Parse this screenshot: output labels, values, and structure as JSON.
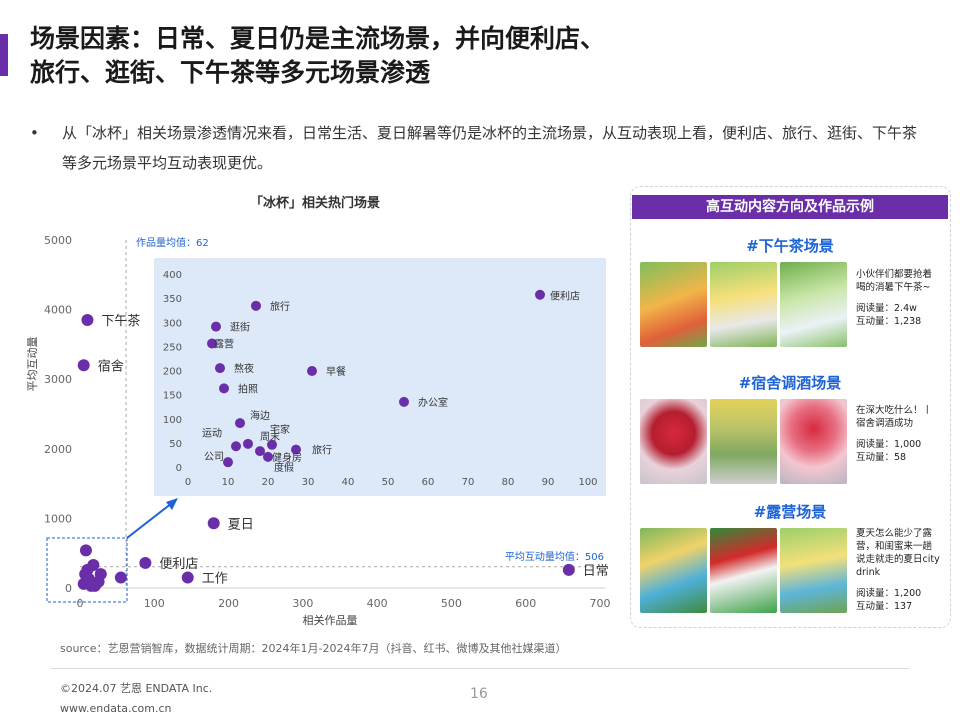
{
  "header": {
    "title_line1": "场景因素：日常、夏日仍是主流场景，并向便利店、",
    "title_line2": "旅行、逛街、下午茶等多元场景渗透",
    "bullet": "从「冰杯」相关场景渗透情况来看，日常生活、夏日解暑等仍是冰杯的主流场景，从互动表现上看，便利店、旅行、逛街、下午茶等多元场景平均互动表现更优。"
  },
  "colors": {
    "accent": "#6a2fa8",
    "point": "#6a2fa8",
    "link_blue": "#1e63d6",
    "inset_bg": "#dde9f9"
  },
  "chart_data": [
    {
      "type": "scatter",
      "title": "「冰杯」相关热门场景",
      "xlabel": "相关作品量",
      "ylabel": "平均互动量",
      "xlim": [
        0,
        700
      ],
      "ylim": [
        0,
        5000
      ],
      "xticks": [
        0,
        100,
        200,
        300,
        400,
        500,
        600,
        700
      ],
      "yticks": [
        0,
        1000,
        2000,
        3000,
        4000,
        5000
      ],
      "ref_lines": {
        "x_label": "作品量均值：62",
        "x_value": 62,
        "y_label": "平均互动量均值：506",
        "y_value": 506
      },
      "points": [
        {
          "label": "下午茶",
          "x": 10,
          "y": 3850
        },
        {
          "label": "宿舍",
          "x": 5,
          "y": 3200
        },
        {
          "label": "夏日",
          "x": 180,
          "y": 930
        },
        {
          "label": "便利店",
          "x": 88,
          "y": 360
        },
        {
          "label": "工作",
          "x": 145,
          "y": 150
        },
        {
          "label": "日常",
          "x": 658,
          "y": 260
        },
        {
          "label": "",
          "x": 55,
          "y": 150
        },
        {
          "label": "",
          "x": 8,
          "y": 540
        },
        {
          "label": "",
          "x": 18,
          "y": 330
        },
        {
          "label": "",
          "x": 28,
          "y": 200
        },
        {
          "label": "",
          "x": 10,
          "y": 260
        },
        {
          "label": "",
          "x": 20,
          "y": 30
        },
        {
          "label": "",
          "x": 5,
          "y": 60
        },
        {
          "label": "",
          "x": 12,
          "y": 130
        },
        {
          "label": "",
          "x": 25,
          "y": 90
        },
        {
          "label": "",
          "x": 7,
          "y": 200
        },
        {
          "label": "",
          "x": 15,
          "y": 30
        }
      ]
    },
    {
      "type": "scatter",
      "title": "",
      "xlim": [
        0,
        100
      ],
      "ylim": [
        0,
        400
      ],
      "xticks": [
        0,
        10,
        20,
        30,
        40,
        50,
        60,
        70,
        80,
        90,
        100
      ],
      "yticks": [
        0,
        50,
        100,
        150,
        200,
        250,
        300,
        350,
        400
      ],
      "points": [
        {
          "label": "便利店",
          "x": 88,
          "y": 357
        },
        {
          "label": "旅行",
          "x": 17,
          "y": 334
        },
        {
          "label": "逛街",
          "x": 7,
          "y": 291
        },
        {
          "label": "露营",
          "x": 6,
          "y": 256
        },
        {
          "label": "熬夜",
          "x": 8,
          "y": 205
        },
        {
          "label": "早餐",
          "x": 31,
          "y": 199
        },
        {
          "label": "拍照",
          "x": 9,
          "y": 163
        },
        {
          "label": "办公室",
          "x": 54,
          "y": 135
        },
        {
          "label": "海边",
          "x": 13,
          "y": 91
        },
        {
          "label": "运动",
          "x": 12,
          "y": 43
        },
        {
          "label": "周末",
          "x": 15,
          "y": 48
        },
        {
          "label": "宅家",
          "x": 21,
          "y": 46
        },
        {
          "label": "旅行",
          "x": 27,
          "y": 36
        },
        {
          "label": "健身房",
          "x": 18,
          "y": 33
        },
        {
          "label": "公司",
          "x": 10,
          "y": 10
        },
        {
          "label": "度假",
          "x": 20,
          "y": 21
        }
      ]
    }
  ],
  "panel": {
    "header": "高互动内容方向及作品示例",
    "sections": [
      {
        "title": "#下午茶场景",
        "desc": "小伙伴们都要抢着喝的消暑下午茶~",
        "reads": "阅读量：2.4w",
        "interactions": "互动量：1,238"
      },
      {
        "title": "#宿舍调酒场景",
        "desc": "在深大吃什么！丨宿舍调酒成功",
        "reads": "阅读量：1,000",
        "interactions": "互动量：58"
      },
      {
        "title": "#露营场景",
        "desc": "夏天怎么能少了露营，和闺蜜来一趟说走就走的夏日city drink",
        "reads": "阅读量：1,200",
        "interactions": "互动量：137"
      }
    ]
  },
  "footer": {
    "source": "source：艺恩营销智库，数据统计周期：2024年1月-2024年7月（抖音、红书、微博及其他社媒渠道）",
    "copyright": "©2024.07 艺恩 ENDATA Inc.",
    "website": "www.endata.com.cn",
    "page": "16"
  }
}
